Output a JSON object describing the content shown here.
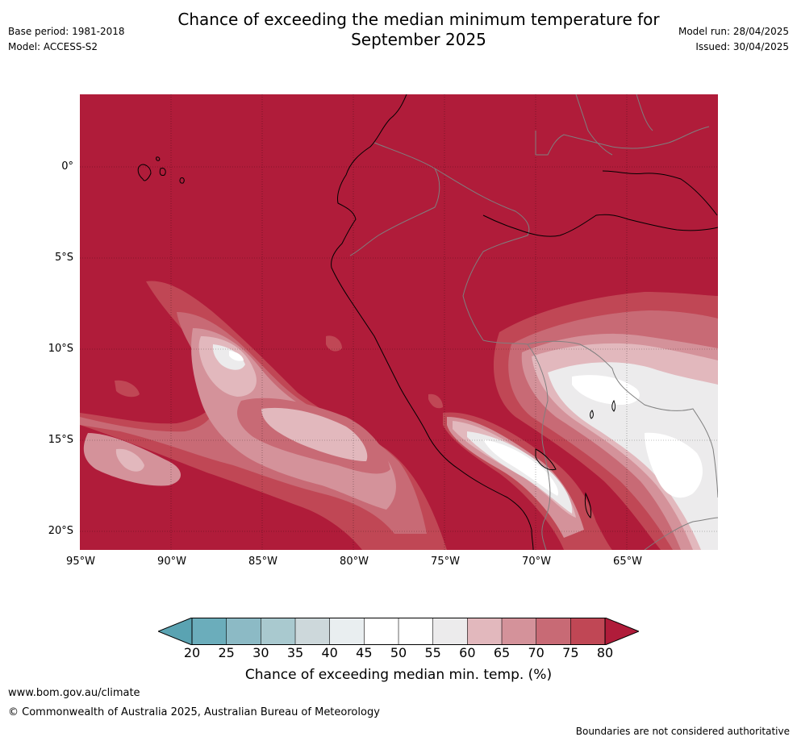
{
  "header": {
    "title_line1": "Chance of exceeding the median minimum temperature for",
    "title_line2": "September 2025",
    "base_period": "Base period: 1981-2018",
    "model": "Model: ACCESS-S2",
    "model_run": "Model run: 28/04/2025",
    "issued": "Issued: 30/04/2025"
  },
  "map": {
    "lat_labels": [
      "0°",
      "5°S",
      "10°S",
      "15°S",
      "20°S"
    ],
    "lon_labels": [
      "95°W",
      "90°W",
      "85°W",
      "80°W",
      "75°W",
      "70°W",
      "65°W"
    ],
    "colors": {
      "above_80": "#b01c3a",
      "c75_80": "#c04755",
      "c70_75": "#c86a75",
      "c65_70": "#d4929a",
      "c60_65": "#e2b8bd",
      "c55_60": "#ecebec",
      "c50_55": "#ffffff",
      "coast": "#000000",
      "border": "#7f7f7f"
    }
  },
  "colorbar": {
    "ticks": [
      "20",
      "25",
      "30",
      "35",
      "40",
      "45",
      "50",
      "55",
      "60",
      "65",
      "70",
      "75",
      "80"
    ],
    "colors": [
      "#5aa3b2",
      "#6badbb",
      "#8cbac5",
      "#a9c9cf",
      "#cdd8db",
      "#e9eef0",
      "#ffffff",
      "#ffffff",
      "#ecebec",
      "#e2b8bd",
      "#d4929a",
      "#c86a75",
      "#c04755",
      "#b01c3a"
    ],
    "label": "Chance of exceeding median min. temp. (%)"
  },
  "footer": {
    "website": "www.bom.gov.au/climate",
    "copyright": "© Commonwealth of Australia 2025, Australian Bureau of Meteorology",
    "disclaimer": "Boundaries are not considered authoritative"
  }
}
